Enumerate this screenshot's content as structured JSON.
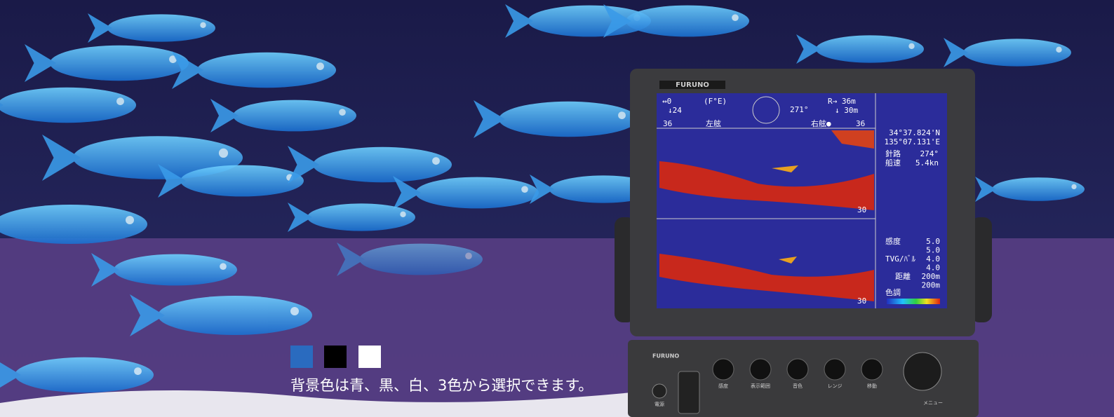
{
  "caption": "背景色は青、黒、白、3色から選択できます。",
  "device": {
    "brand_top": "FURUNO",
    "brand_panel": "FURUNO"
  },
  "screen": {
    "top_left": [
      "↔0",
      "↓24"
    ],
    "mode": "(F°E)",
    "bearing": "271°",
    "range": [
      "R→ 36m",
      "↓ 30m"
    ],
    "scale": [
      "36",
      "左舷",
      "右舷●",
      "36"
    ],
    "position": [
      "34°37.824'N",
      "135°07.131'E"
    ],
    "course_label": "針路",
    "course": "274°",
    "speed_label": "船速",
    "speed": "5.4kn",
    "depth_marks": [
      "30",
      "30"
    ],
    "settings": [
      {
        "label": "感度",
        "values": [
          "5.0",
          "5.0"
        ]
      },
      {
        "label": "TVG/ﾊﾞﾙ",
        "values": [
          "4.0",
          "4.0"
        ]
      },
      {
        "label": "距離",
        "values": [
          "200m",
          "200m"
        ]
      }
    ],
    "color_label": "色調"
  },
  "panel_buttons": [
    "電源",
    "感度",
    "表示範囲",
    "音色",
    "レンジ",
    "移動",
    "メニュー"
  ]
}
